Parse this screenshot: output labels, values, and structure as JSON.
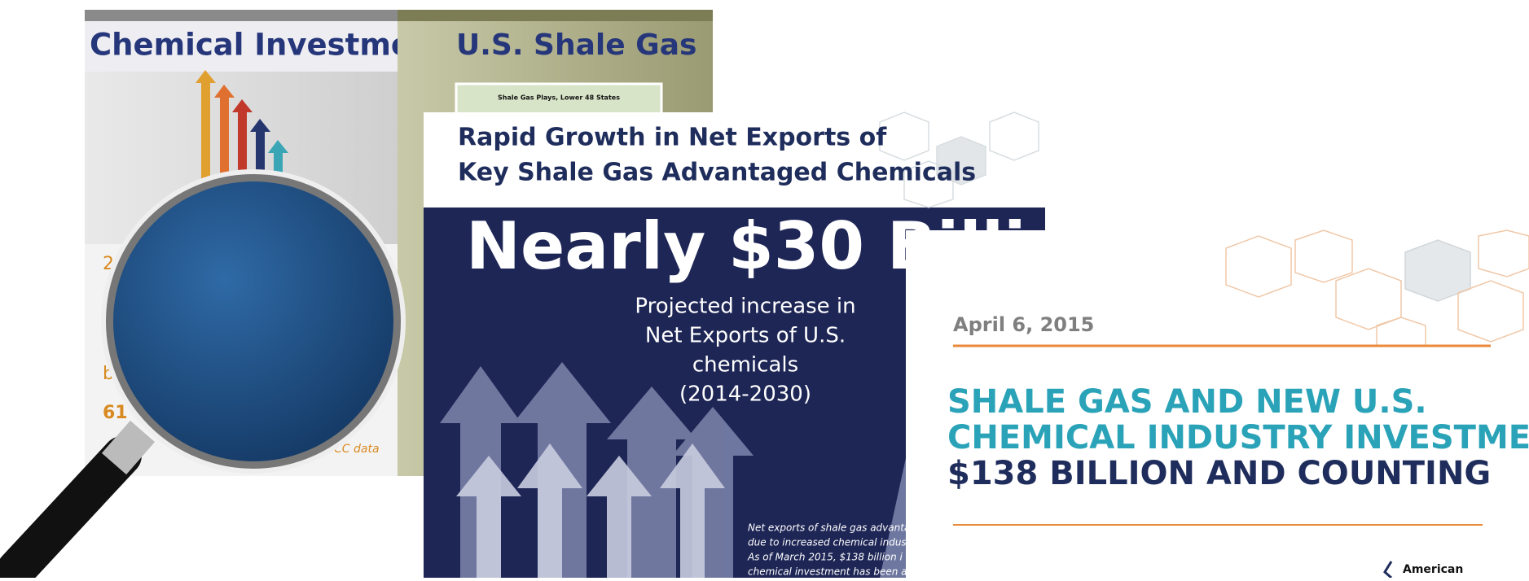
{
  "investment_card": {
    "title": "Chemical Investment",
    "fragments": [
      "2",
      "b",
      "61",
      "CC data"
    ]
  },
  "shale_card": {
    "title": "U.S. Shale Gas",
    "map_caption": "Shale Gas Plays, Lower 48 States"
  },
  "exports_card": {
    "title_lines": [
      "Rapid Growth in Net Exports of",
      "Key Shale Gas Advantaged Chemicals"
    ],
    "headline": "Nearly $30 Billi",
    "subtitle_lines": [
      "Projected increase in",
      "Net Exports of U.S.",
      "chemicals",
      "(2014-2030)"
    ],
    "note_lines": [
      "Net exports of shale gas advanta",
      "due to increased chemical indus",
      "As of March 2015, $138 billion i",
      "chemical investment has been a"
    ]
  },
  "report_card": {
    "date": "April 6, 2015",
    "title_lines": [
      "SHALE GAS AND NEW U.S.",
      "CHEMICAL INDUSTRY INVESTMENT:",
      "$138 BILLION AND COUNTING"
    ],
    "logo": "American"
  }
}
